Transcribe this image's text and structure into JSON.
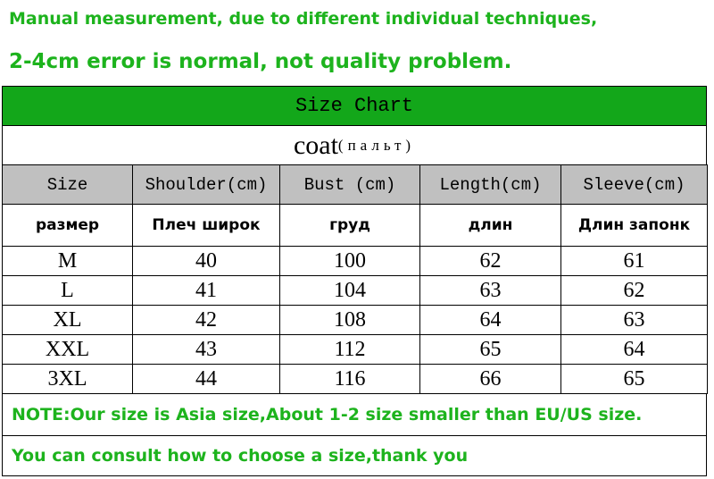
{
  "notice": {
    "line1": "Manual measurement, due to different individual techniques,",
    "line2": "2-4cm error is normal, not quality problem."
  },
  "table": {
    "title": "Size Chart",
    "product": "coat",
    "product_ru": "(пальт)",
    "header": [
      "Size",
      "Shoulder(cm)",
      "Bust (cm)",
      "Length(cm)",
      "Sleeve(cm)"
    ],
    "header_ru": [
      "размер",
      "Плеч широк",
      "груд",
      "длин",
      "Длин запонк"
    ],
    "rows": [
      [
        "M",
        40,
        100,
        62,
        61
      ],
      [
        "L",
        41,
        104,
        63,
        62
      ],
      [
        "XL",
        42,
        108,
        64,
        63
      ],
      [
        "XXL",
        43,
        112,
        65,
        64
      ],
      [
        "3XL",
        44,
        116,
        66,
        65
      ]
    ]
  },
  "notes": [
    "NOTE:Our size is Asia size,About 1-2 size smaller than EU/US size.",
    "You can consult how to choose a size,thank you"
  ]
}
